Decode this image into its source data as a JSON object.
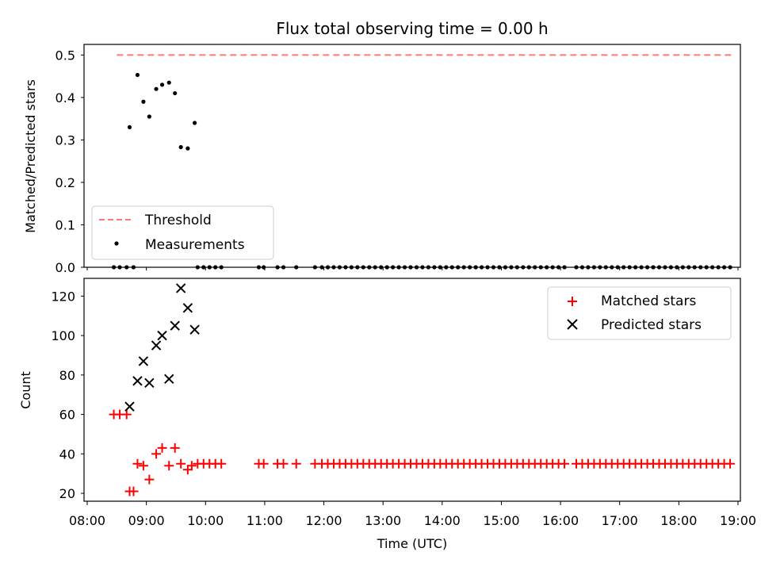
{
  "chart_data": [
    {
      "type": "scatter",
      "title": "Flux total observing time = 0.00 h",
      "xlabel": "",
      "ylabel": "Matched/Predicted stars",
      "xlim": [
        "08:00",
        "19:00"
      ],
      "ylim": [
        0,
        0.525
      ],
      "yticks": [
        "0.0",
        "0.1",
        "0.2",
        "0.3",
        "0.4",
        "0.5"
      ],
      "threshold": {
        "x": [
          "08:30",
          "18:53"
        ],
        "value": 0.5,
        "color": "#ff7777",
        "style": "dashed"
      },
      "legend": {
        "placement": "lower-left",
        "entries": [
          "Threshold",
          "Measurements"
        ]
      },
      "series": [
        {
          "name": "Measurements",
          "color": "#000000",
          "points": [
            [
              "08:43",
              0.33
            ],
            [
              "08:51",
              0.453
            ],
            [
              "08:57",
              0.39
            ],
            [
              "09:03",
              0.355
            ],
            [
              "09:10",
              0.42
            ],
            [
              "09:16",
              0.43
            ],
            [
              "09:23",
              0.435
            ],
            [
              "09:29",
              0.41
            ],
            [
              "09:35",
              0.283
            ],
            [
              "09:42",
              0.28
            ],
            [
              "09:49",
              0.34
            ]
          ],
          "zero_times": [
            "08:27",
            "08:33",
            "08:40",
            "08:47",
            "09:52",
            "09:58",
            "10:04",
            "10:10",
            "10:16",
            "10:54",
            "10:59",
            "11:13",
            "11:19",
            "11:32",
            "11:51",
            "11:58",
            "12:04",
            "12:10",
            "12:16",
            "12:22",
            "12:28",
            "12:34",
            "12:40",
            "12:46",
            "12:52",
            "12:58",
            "13:04",
            "13:10",
            "13:16",
            "13:22",
            "13:28",
            "13:34",
            "13:40",
            "13:46",
            "13:52",
            "13:58",
            "14:04",
            "14:10",
            "14:16",
            "14:22",
            "14:28",
            "14:34",
            "14:40",
            "14:46",
            "14:52",
            "14:58",
            "15:04",
            "15:10",
            "15:16",
            "15:22",
            "15:28",
            "15:34",
            "15:40",
            "15:46",
            "15:52",
            "15:58",
            "16:04",
            "16:16",
            "16:22",
            "16:28",
            "16:34",
            "16:40",
            "16:46",
            "16:52",
            "16:58",
            "17:04",
            "17:10",
            "17:16",
            "17:22",
            "17:28",
            "17:34",
            "17:40",
            "17:46",
            "17:52",
            "17:58",
            "18:04",
            "18:10",
            "18:16",
            "18:22",
            "18:28",
            "18:34",
            "18:40",
            "18:46",
            "18:52"
          ]
        }
      ]
    },
    {
      "type": "scatter",
      "title": "",
      "xlabel": "Time (UTC)",
      "ylabel": "Count",
      "xlim": [
        "08:00",
        "19:00"
      ],
      "ylim": [
        16,
        129
      ],
      "xticks": [
        "08:00",
        "09:00",
        "10:00",
        "11:00",
        "12:00",
        "13:00",
        "14:00",
        "15:00",
        "16:00",
        "17:00",
        "18:00",
        "19:00"
      ],
      "yticks": [
        "20",
        "40",
        "60",
        "80",
        "100",
        "120"
      ],
      "legend": {
        "placement": "top-right",
        "entries": [
          "Matched stars",
          "Predicted stars"
        ]
      },
      "series": [
        {
          "name": "Matched stars",
          "marker": "plus",
          "color": "#ff0000",
          "points": [
            [
              "08:27",
              60
            ],
            [
              "08:33",
              60
            ],
            [
              "08:40",
              60
            ],
            [
              "08:43",
              21
            ],
            [
              "08:47",
              21
            ],
            [
              "08:51",
              35
            ],
            [
              "08:57",
              34
            ],
            [
              "09:03",
              27
            ],
            [
              "09:10",
              40
            ],
            [
              "09:16",
              43
            ],
            [
              "09:23",
              34
            ],
            [
              "09:29",
              43
            ],
            [
              "09:35",
              35
            ],
            [
              "09:42",
              32
            ],
            [
              "09:46",
              34
            ],
            [
              "09:52",
              35
            ],
            [
              "09:58",
              35
            ],
            [
              "10:04",
              35
            ],
            [
              "10:10",
              35
            ],
            [
              "10:16",
              35
            ],
            [
              "10:54",
              35
            ],
            [
              "10:59",
              35
            ],
            [
              "11:13",
              35
            ],
            [
              "11:19",
              35
            ],
            [
              "11:32",
              35
            ],
            [
              "11:51",
              35
            ],
            [
              "11:58",
              35
            ],
            [
              "12:04",
              35
            ],
            [
              "12:10",
              35
            ],
            [
              "12:16",
              35
            ],
            [
              "12:22",
              35
            ],
            [
              "12:28",
              35
            ],
            [
              "12:34",
              35
            ],
            [
              "12:40",
              35
            ],
            [
              "12:46",
              35
            ],
            [
              "12:52",
              35
            ],
            [
              "12:58",
              35
            ],
            [
              "13:04",
              35
            ],
            [
              "13:10",
              35
            ],
            [
              "13:16",
              35
            ],
            [
              "13:22",
              35
            ],
            [
              "13:28",
              35
            ],
            [
              "13:34",
              35
            ],
            [
              "13:40",
              35
            ],
            [
              "13:46",
              35
            ],
            [
              "13:52",
              35
            ],
            [
              "13:58",
              35
            ],
            [
              "14:04",
              35
            ],
            [
              "14:10",
              35
            ],
            [
              "14:16",
              35
            ],
            [
              "14:22",
              35
            ],
            [
              "14:28",
              35
            ],
            [
              "14:34",
              35
            ],
            [
              "14:40",
              35
            ],
            [
              "14:46",
              35
            ],
            [
              "14:52",
              35
            ],
            [
              "14:58",
              35
            ],
            [
              "15:04",
              35
            ],
            [
              "15:10",
              35
            ],
            [
              "15:16",
              35
            ],
            [
              "15:22",
              35
            ],
            [
              "15:28",
              35
            ],
            [
              "15:34",
              35
            ],
            [
              "15:40",
              35
            ],
            [
              "15:46",
              35
            ],
            [
              "15:52",
              35
            ],
            [
              "15:58",
              35
            ],
            [
              "16:04",
              35
            ],
            [
              "16:16",
              35
            ],
            [
              "16:22",
              35
            ],
            [
              "16:28",
              35
            ],
            [
              "16:34",
              35
            ],
            [
              "16:40",
              35
            ],
            [
              "16:46",
              35
            ],
            [
              "16:52",
              35
            ],
            [
              "16:58",
              35
            ],
            [
              "17:04",
              35
            ],
            [
              "17:10",
              35
            ],
            [
              "17:16",
              35
            ],
            [
              "17:22",
              35
            ],
            [
              "17:28",
              35
            ],
            [
              "17:34",
              35
            ],
            [
              "17:40",
              35
            ],
            [
              "17:46",
              35
            ],
            [
              "17:52",
              35
            ],
            [
              "17:58",
              35
            ],
            [
              "18:04",
              35
            ],
            [
              "18:10",
              35
            ],
            [
              "18:16",
              35
            ],
            [
              "18:22",
              35
            ],
            [
              "18:28",
              35
            ],
            [
              "18:34",
              35
            ],
            [
              "18:40",
              35
            ],
            [
              "18:46",
              35
            ],
            [
              "18:52",
              35
            ]
          ]
        },
        {
          "name": "Predicted stars",
          "marker": "x",
          "color": "#000000",
          "points": [
            [
              "08:43",
              64
            ],
            [
              "08:51",
              77
            ],
            [
              "08:57",
              87
            ],
            [
              "09:03",
              76
            ],
            [
              "09:10",
              95
            ],
            [
              "09:16",
              100
            ],
            [
              "09:23",
              78
            ],
            [
              "09:29",
              105
            ],
            [
              "09:35",
              124
            ],
            [
              "09:42",
              114
            ],
            [
              "09:49",
              103
            ]
          ]
        }
      ]
    }
  ]
}
